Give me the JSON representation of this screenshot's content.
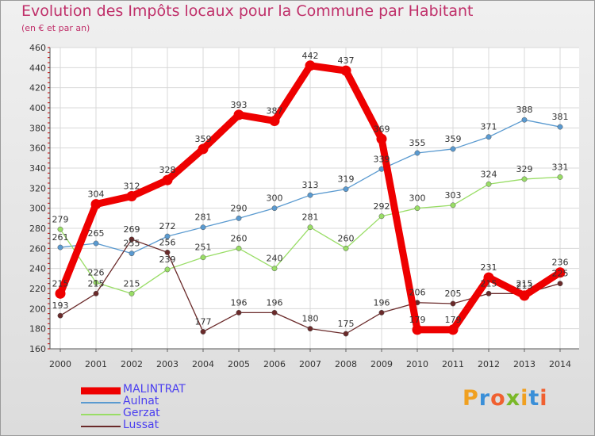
{
  "title": "Evolution des Impôts locaux pour la Commune par Habitant",
  "subtitle": "(en € et par an)",
  "logo_letters": [
    "P",
    "r",
    "o",
    "x",
    "i",
    "t",
    "i"
  ],
  "logo_colors": [
    "#f0a020",
    "#3a8fd8",
    "#f06030",
    "#7ab828",
    "#f0a020",
    "#3a8fd8",
    "#f06030"
  ],
  "chart_data": {
    "type": "line",
    "title": "Evolution des Impôts locaux pour la Commune par Habitant",
    "subtitle": "(en € et par an)",
    "x": [
      "2000",
      "2001",
      "2002",
      "2003",
      "2004",
      "2005",
      "2006",
      "2007",
      "2008",
      "2009",
      "2010",
      "2011",
      "2012",
      "2013",
      "2014"
    ],
    "yticks": [
      "160",
      "180",
      "200",
      "220",
      "240",
      "260",
      "280",
      "300",
      "320",
      "340",
      "360",
      "380",
      "400",
      "420",
      "440",
      "460"
    ],
    "ylim": [
      160,
      460
    ],
    "grid": true,
    "legend_position": "bottom-left",
    "series": [
      {
        "name": "MALINTRAT",
        "color": "#ee0000",
        "highlight": true,
        "values": [
          215,
          304,
          312,
          328,
          359,
          393,
          387,
          442,
          437,
          369,
          179,
          179,
          231,
          213,
          236
        ],
        "labels": [
          "215",
          "304",
          "312",
          "328",
          "359",
          "393",
          "387",
          "442",
          "437",
          "369",
          "179",
          "179",
          "231",
          "213",
          "236"
        ]
      },
      {
        "name": "Aulnat",
        "color": "#5a9ad0",
        "values": [
          261,
          265,
          255,
          272,
          281,
          290,
          300,
          313,
          319,
          339,
          355,
          359,
          371,
          388,
          381
        ],
        "labels": [
          "261",
          "265",
          "255",
          "272",
          "281",
          "290",
          "300",
          "313",
          "319",
          "339",
          "355",
          "359",
          "371",
          "388",
          "381"
        ]
      },
      {
        "name": "Gerzat",
        "color": "#99dd66",
        "values": [
          279,
          226,
          215,
          239,
          251,
          260,
          240,
          281,
          260,
          292,
          300,
          303,
          324,
          329,
          331
        ],
        "labels": [
          "279",
          "226",
          "215",
          "239",
          "251",
          "260",
          "240",
          "281",
          "260",
          "292",
          "300",
          "303",
          "324",
          "329",
          "331"
        ]
      },
      {
        "name": "Lussat",
        "color": "#6a2a2a",
        "values": [
          193,
          215,
          269,
          256,
          177,
          196,
          196,
          180,
          175,
          196,
          206,
          205,
          215,
          215,
          225
        ],
        "labels": [
          "193",
          "215",
          "269",
          "256",
          "177",
          "196",
          "196",
          "180",
          "175",
          "196",
          "206",
          "205",
          "215",
          "215",
          "225"
        ]
      }
    ]
  }
}
